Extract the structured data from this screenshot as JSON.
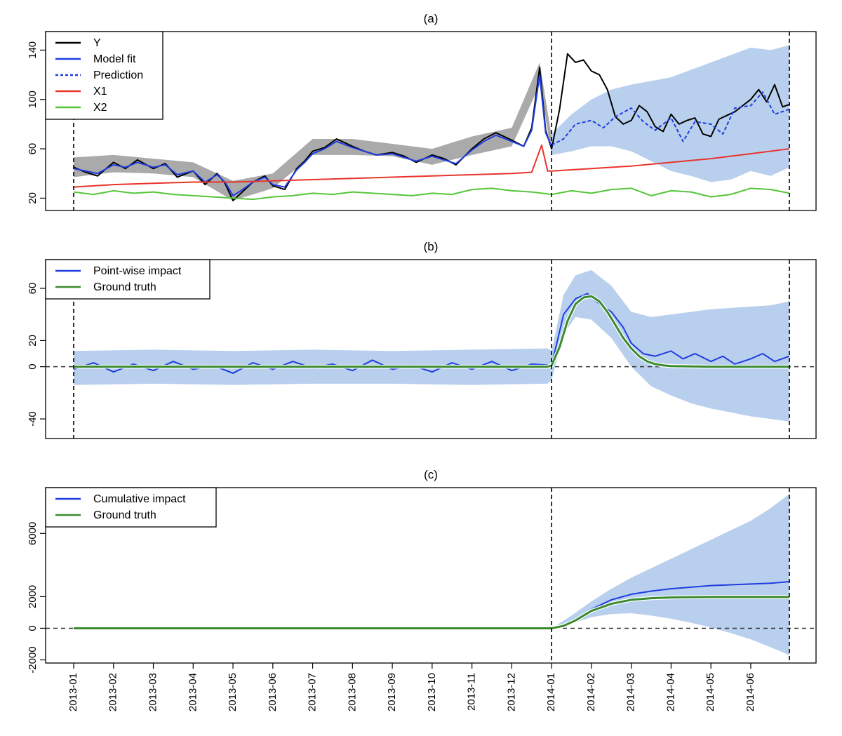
{
  "chart_data": [
    {
      "type": "line",
      "title": "(a)",
      "x_unit": "month index (0 = 2013-01, 12 = 2014-01)",
      "xlim": [
        0,
        18
      ],
      "ylim": [
        10,
        155
      ],
      "yticks": [
        20,
        60,
        100,
        140
      ],
      "intervention_lines": [
        0,
        12,
        17.97
      ],
      "legend": [
        {
          "label": "Y",
          "color": "#000000",
          "dash": "solid"
        },
        {
          "label": "Model fit",
          "color": "#1f3de0",
          "dash": "solid"
        },
        {
          "label": "Prediction",
          "color": "#1f3de0",
          "dash": "dotted"
        },
        {
          "label": "X1",
          "color": "#e8342c",
          "dash": "solid"
        },
        {
          "label": "X2",
          "color": "#55c63a",
          "dash": "solid"
        }
      ],
      "series": [
        {
          "name": "Y",
          "x": [
            0,
            0.3,
            0.6,
            1,
            1.3,
            1.6,
            2,
            2.3,
            2.6,
            3,
            3.3,
            3.6,
            3.8,
            4,
            4.2,
            4.5,
            4.8,
            5,
            5.3,
            5.6,
            5.8,
            6,
            6.3,
            6.6,
            7,
            7.3,
            7.6,
            8,
            8.3,
            8.6,
            9,
            9.3,
            9.6,
            10,
            10.3,
            10.6,
            11,
            11.3,
            11.5,
            11.7,
            11.85,
            12,
            12.2,
            12.4,
            12.6,
            12.8,
            13,
            13.2,
            13.4,
            13.6,
            13.8,
            14,
            14.2,
            14.4,
            14.6,
            14.8,
            15,
            15.2,
            15.4,
            15.6,
            15.8,
            16,
            16.2,
            16.4,
            16.6,
            16.8,
            17,
            17.2,
            17.4,
            17.6,
            17.8,
            17.97
          ],
          "y": [
            45,
            41,
            38,
            49,
            44,
            51,
            44,
            48,
            37,
            42,
            31,
            40,
            32,
            18,
            24,
            33,
            38,
            30,
            27,
            44,
            50,
            58,
            61,
            68,
            62,
            58,
            55,
            57,
            54,
            49,
            55,
            52,
            47,
            60,
            68,
            73,
            67,
            62,
            77,
            126,
            75,
            60,
            92,
            137,
            130,
            132,
            123,
            120,
            108,
            86,
            80,
            83,
            95,
            90,
            78,
            74,
            88,
            80,
            83,
            85,
            72,
            70,
            84,
            87,
            90,
            95,
            100,
            108,
            98,
            112,
            94,
            96
          ]
        },
        {
          "name": "Model fit",
          "x": [
            0,
            0.3,
            0.6,
            1,
            1.3,
            1.6,
            2,
            2.3,
            2.6,
            3,
            3.3,
            3.6,
            3.8,
            4,
            4.2,
            4.5,
            4.8,
            5,
            5.3,
            5.6,
            5.8,
            6,
            6.3,
            6.6,
            7,
            7.3,
            7.6,
            8,
            8.3,
            8.6,
            9,
            9.3,
            9.6,
            10,
            10.3,
            10.6,
            11,
            11.3,
            11.5,
            11.7,
            11.85,
            12
          ],
          "y": [
            44,
            42,
            40,
            47,
            45,
            49,
            45,
            47,
            39,
            42,
            33,
            39,
            33,
            22,
            26,
            33,
            37,
            31,
            29,
            43,
            49,
            56,
            60,
            66,
            61,
            58,
            55,
            56,
            53,
            50,
            54,
            51,
            48,
            59,
            66,
            71,
            66,
            62,
            75,
            120,
            73,
            62
          ]
        },
        {
          "name": "Prediction",
          "x": [
            12,
            12.3,
            12.6,
            13,
            13.3,
            13.6,
            14,
            14.3,
            14.6,
            15,
            15.3,
            15.6,
            16,
            16.3,
            16.6,
            17,
            17.3,
            17.6,
            17.97
          ],
          "y": [
            63,
            68,
            80,
            83,
            77,
            86,
            93,
            82,
            75,
            85,
            66,
            82,
            80,
            72,
            93,
            95,
            106,
            88,
            92
          ]
        },
        {
          "name": "X1",
          "x": [
            0,
            1,
            2,
            3,
            4,
            5,
            6,
            7,
            8,
            9,
            10,
            11,
            11.5,
            11.75,
            11.9,
            12,
            13,
            14,
            15,
            16,
            17,
            17.97
          ],
          "y": [
            29,
            31,
            32,
            33,
            33,
            34,
            35,
            36,
            37,
            38,
            39,
            40,
            41,
            63,
            42,
            42,
            44,
            46,
            49,
            52,
            56,
            60
          ]
        },
        {
          "name": "X2",
          "x": [
            0,
            0.5,
            1,
            1.5,
            2,
            2.5,
            3,
            3.5,
            4,
            4.5,
            5,
            5.5,
            6,
            6.5,
            7,
            7.5,
            8,
            8.5,
            9,
            9.5,
            10,
            10.5,
            11,
            11.5,
            12,
            12.5,
            13,
            13.5,
            14,
            14.5,
            15,
            15.5,
            16,
            16.5,
            17,
            17.5,
            17.97
          ],
          "y": [
            25,
            23,
            26,
            24,
            25,
            23,
            22,
            21,
            20,
            19,
            21,
            22,
            24,
            23,
            25,
            24,
            23,
            22,
            24,
            23,
            27,
            28,
            26,
            25,
            23,
            26,
            24,
            27,
            28,
            22,
            26,
            25,
            21,
            23,
            28,
            27,
            24
          ]
        }
      ],
      "bands": [
        {
          "name": "Model fit interval",
          "color": "#aaaaaa",
          "x": [
            0,
            1,
            2,
            3,
            4,
            5,
            6,
            7,
            8,
            9,
            10,
            11,
            11.7,
            12
          ],
          "lower": [
            37,
            41,
            40,
            37,
            18,
            28,
            55,
            55,
            54,
            47,
            55,
            62,
            112,
            56
          ],
          "upper": [
            53,
            55,
            52,
            49,
            34,
            40,
            68,
            68,
            64,
            60,
            70,
            77,
            130,
            70
          ]
        },
        {
          "name": "Prediction interval",
          "color": "#b8d0ee",
          "x": [
            12,
            12.5,
            13,
            13.5,
            14,
            14.5,
            15,
            15.5,
            16,
            16.5,
            17,
            17.5,
            17.97
          ],
          "lower": [
            55,
            58,
            62,
            62,
            58,
            50,
            42,
            38,
            33,
            35,
            42,
            38,
            45
          ],
          "upper": [
            72,
            88,
            100,
            108,
            112,
            115,
            118,
            124,
            130,
            136,
            142,
            140,
            144
          ]
        }
      ]
    },
    {
      "type": "line",
      "title": "(b)",
      "xlim": [
        0,
        18
      ],
      "ylim": [
        -55,
        82
      ],
      "yticks": [
        -40,
        0,
        20,
        60
      ],
      "zero_line": 0,
      "intervention_lines": [
        0,
        12,
        17.97
      ],
      "legend": [
        {
          "label": "Point-wise impact",
          "color": "#1f3de0"
        },
        {
          "label": "Ground truth",
          "color": "#3a8a2e"
        }
      ],
      "series": [
        {
          "name": "Point-wise impact",
          "x": [
            0,
            0.5,
            1,
            1.5,
            2,
            2.5,
            3,
            3.5,
            4,
            4.5,
            5,
            5.5,
            6,
            6.5,
            7,
            7.5,
            8,
            8.5,
            9,
            9.5,
            10,
            10.5,
            11,
            11.5,
            12,
            12.3,
            12.6,
            12.9,
            13.2,
            13.5,
            13.8,
            14,
            14.3,
            14.6,
            15,
            15.3,
            15.6,
            16,
            16.3,
            16.6,
            17,
            17.3,
            17.6,
            17.97
          ],
          "y": [
            -2,
            3,
            -4,
            2,
            -3,
            4,
            -2,
            1,
            -5,
            3,
            -2,
            4,
            -1,
            2,
            -3,
            5,
            -2,
            1,
            -4,
            3,
            -2,
            4,
            -3,
            2,
            1,
            40,
            52,
            56,
            48,
            42,
            30,
            18,
            10,
            8,
            12,
            6,
            10,
            4,
            8,
            2,
            6,
            10,
            4,
            8
          ]
        },
        {
          "name": "Ground truth",
          "x": [
            0,
            11.9,
            12,
            12.2,
            12.4,
            12.6,
            12.8,
            13,
            13.2,
            13.4,
            13.6,
            13.8,
            14,
            14.2,
            14.4,
            14.6,
            14.8,
            15,
            15.5,
            16,
            17,
            17.97
          ],
          "y": [
            0,
            0,
            1,
            15,
            35,
            48,
            53,
            54,
            50,
            42,
            32,
            22,
            14,
            8,
            4,
            2,
            1,
            0.5,
            0.2,
            0,
            0,
            0
          ]
        }
      ],
      "bands": [
        {
          "name": "Impact interval",
          "color": "#b8d0ee",
          "x": [
            0,
            2,
            4,
            6,
            8,
            10,
            11.9,
            12,
            12.3,
            12.6,
            13,
            13.5,
            14,
            14.5,
            15,
            15.5,
            16,
            16.5,
            17,
            17.5,
            17.97
          ],
          "lower": [
            -14,
            -13,
            -14,
            -13,
            -13,
            -14,
            -13,
            -10,
            25,
            38,
            36,
            22,
            0,
            -15,
            -22,
            -28,
            -32,
            -35,
            -38,
            -40,
            -42
          ],
          "upper": [
            12,
            13,
            12,
            13,
            12,
            13,
            14,
            12,
            55,
            70,
            74,
            62,
            42,
            38,
            40,
            42,
            44,
            45,
            46,
            47,
            50
          ]
        }
      ]
    },
    {
      "type": "line",
      "title": "(c)",
      "xlim": [
        0,
        18
      ],
      "ylim": [
        -2200,
        8900
      ],
      "yticks": [
        -2000,
        0,
        2000,
        6000
      ],
      "zero_line": 0,
      "intervention_lines": [
        12,
        17.97
      ],
      "xtick_labels": [
        "2013-01",
        "2013-02",
        "2013-03",
        "2013-04",
        "2013-05",
        "2013-06",
        "2013-07",
        "2013-08",
        "2013-09",
        "2013-10",
        "2013-11",
        "2013-12",
        "2014-01",
        "2014-02",
        "2014-03",
        "2014-04",
        "2014-05",
        "2014-06"
      ],
      "legend": [
        {
          "label": "Cumulative impact",
          "color": "#1f3de0"
        },
        {
          "label": "Ground truth",
          "color": "#3a8a2e"
        }
      ],
      "series": [
        {
          "name": "Cumulative impact",
          "x": [
            0,
            12,
            12.3,
            12.6,
            13,
            13.5,
            14,
            14.5,
            15,
            15.5,
            16,
            16.5,
            17,
            17.5,
            17.97
          ],
          "y": [
            0,
            0,
            200,
            550,
            1200,
            1800,
            2150,
            2350,
            2500,
            2600,
            2700,
            2750,
            2800,
            2850,
            2950
          ]
        },
        {
          "name": "Ground truth",
          "x": [
            0,
            12,
            12.3,
            12.6,
            13,
            13.5,
            14,
            14.5,
            15,
            15.5,
            16,
            17,
            17.97
          ],
          "y": [
            0,
            0,
            150,
            500,
            1100,
            1550,
            1800,
            1900,
            1950,
            1970,
            1980,
            1980,
            1980
          ]
        }
      ],
      "bands": [
        {
          "name": "Cumulative interval",
          "color": "#b8d0ee",
          "x": [
            12,
            12.5,
            13,
            13.5,
            14,
            14.5,
            15,
            15.5,
            16,
            16.5,
            17,
            17.5,
            17.97
          ],
          "lower": [
            0,
            300,
            700,
            900,
            950,
            800,
            600,
            350,
            50,
            -300,
            -700,
            -1200,
            -1700
          ],
          "upper": [
            0,
            800,
            1700,
            2500,
            3200,
            3800,
            4400,
            5000,
            5600,
            6200,
            6800,
            7600,
            8500
          ]
        }
      ]
    }
  ]
}
